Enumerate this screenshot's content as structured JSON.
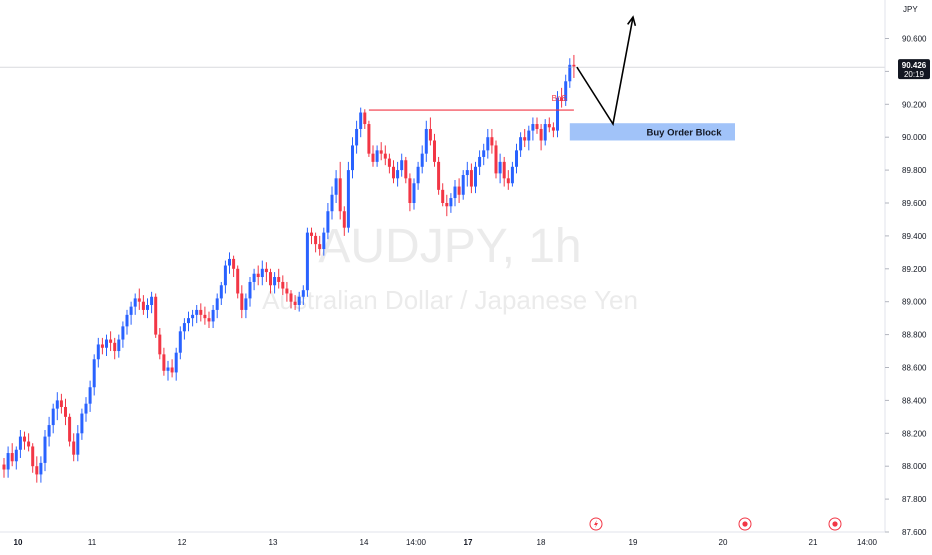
{
  "symbol_watermark": "AUDJPY, 1h",
  "name_watermark": "Australian Dollar / Japanese Yen",
  "currency_label": "JPY",
  "price_axis": {
    "ticks": [
      "90.600",
      "90.400",
      "90.200",
      "90.000",
      "89.800",
      "89.600",
      "89.400",
      "89.200",
      "89.000",
      "88.800",
      "88.600",
      "88.400",
      "88.200",
      "88.000",
      "87.800",
      "87.600"
    ],
    "current_price": "90.426",
    "countdown": "20:19"
  },
  "time_axis": {
    "ticks": [
      {
        "label": "10",
        "bold": true
      },
      {
        "label": "11",
        "bold": false
      },
      {
        "label": "12",
        "bold": false
      },
      {
        "label": "13",
        "bold": false
      },
      {
        "label": "14",
        "bold": false
      },
      {
        "label": "14:00",
        "bold": false
      },
      {
        "label": "17",
        "bold": true
      },
      {
        "label": "18",
        "bold": false
      },
      {
        "label": "19",
        "bold": false
      },
      {
        "label": "20",
        "bold": false
      },
      {
        "label": "21",
        "bold": false
      },
      {
        "label": "14:00",
        "bold": false
      }
    ]
  },
  "annotations": {
    "bos_label": "BoS",
    "order_block_label": "Buy Order Block"
  },
  "colors": {
    "up": "#2962ff",
    "down": "#f23645",
    "bos_line": "#f23645",
    "order_block": "#90b8f8",
    "arrow": "#000000"
  },
  "event_icons": [
    "lightning-event-icon",
    "target-event-icon",
    "target-event-icon"
  ],
  "chart_data": {
    "type": "candlestick",
    "title": "AUDJPY, 1h",
    "ylim": [
      87.6,
      90.7
    ],
    "current_price": 90.426,
    "bos_level": 90.165,
    "order_block": [
      89.98,
      90.085
    ],
    "projection": [
      90.426,
      90.08,
      90.73
    ],
    "ohlc": [
      [
        88.01,
        88.05,
        87.93,
        87.98
      ],
      [
        87.98,
        88.12,
        87.93,
        88.08
      ],
      [
        88.08,
        88.14,
        88.0,
        88.03
      ],
      [
        88.03,
        88.12,
        87.98,
        88.1
      ],
      [
        88.1,
        88.22,
        88.05,
        88.18
      ],
      [
        88.18,
        88.21,
        88.1,
        88.15
      ],
      [
        88.15,
        88.2,
        88.09,
        88.12
      ],
      [
        88.12,
        88.14,
        87.96,
        88.0
      ],
      [
        88.0,
        88.06,
        87.9,
        87.95
      ],
      [
        87.95,
        88.06,
        87.9,
        88.02
      ],
      [
        88.02,
        88.22,
        87.97,
        88.18
      ],
      [
        88.18,
        88.3,
        88.12,
        88.25
      ],
      [
        88.25,
        88.38,
        88.2,
        88.35
      ],
      [
        88.35,
        88.45,
        88.28,
        88.4
      ],
      [
        88.4,
        88.44,
        88.32,
        88.36
      ],
      [
        88.36,
        88.41,
        88.25,
        88.3
      ],
      [
        88.3,
        88.32,
        88.12,
        88.15
      ],
      [
        88.15,
        88.2,
        88.03,
        88.07
      ],
      [
        88.07,
        88.25,
        88.03,
        88.2
      ],
      [
        88.2,
        88.35,
        88.16,
        88.32
      ],
      [
        88.32,
        88.42,
        88.27,
        88.38
      ],
      [
        88.38,
        88.52,
        88.33,
        88.48
      ],
      [
        88.48,
        88.68,
        88.43,
        88.65
      ],
      [
        88.65,
        88.78,
        88.6,
        88.74
      ],
      [
        88.74,
        88.78,
        88.68,
        88.72
      ],
      [
        88.72,
        88.8,
        88.67,
        88.77
      ],
      [
        88.77,
        88.82,
        88.7,
        88.75
      ],
      [
        88.75,
        88.78,
        88.65,
        88.7
      ],
      [
        88.7,
        88.8,
        88.66,
        88.77
      ],
      [
        88.77,
        88.88,
        88.72,
        88.85
      ],
      [
        88.85,
        88.95,
        88.8,
        88.92
      ],
      [
        88.92,
        89.0,
        88.86,
        88.97
      ],
      [
        88.97,
        89.05,
        88.92,
        89.02
      ],
      [
        89.02,
        89.08,
        88.95,
        89.0
      ],
      [
        89.0,
        89.04,
        88.92,
        88.95
      ],
      [
        88.95,
        89.02,
        88.9,
        88.98
      ],
      [
        88.98,
        89.06,
        88.93,
        89.03
      ],
      [
        89.03,
        89.05,
        88.78,
        88.8
      ],
      [
        88.8,
        88.84,
        88.65,
        88.68
      ],
      [
        88.68,
        88.72,
        88.55,
        88.58
      ],
      [
        88.58,
        88.64,
        88.52,
        88.6
      ],
      [
        88.6,
        88.65,
        88.54,
        88.57
      ],
      [
        88.57,
        88.72,
        88.52,
        88.69
      ],
      [
        88.69,
        88.85,
        88.65,
        88.82
      ],
      [
        88.82,
        88.9,
        88.77,
        88.87
      ],
      [
        88.87,
        88.94,
        88.82,
        88.9
      ],
      [
        88.9,
        88.95,
        88.85,
        88.92
      ],
      [
        88.92,
        88.98,
        88.87,
        88.95
      ],
      [
        88.95,
        88.99,
        88.88,
        88.92
      ],
      [
        88.92,
        88.97,
        88.86,
        88.9
      ],
      [
        88.9,
        88.94,
        88.84,
        88.88
      ],
      [
        88.88,
        88.98,
        88.84,
        88.95
      ],
      [
        88.95,
        89.05,
        88.9,
        89.02
      ],
      [
        89.02,
        89.12,
        88.98,
        89.1
      ],
      [
        89.1,
        89.25,
        89.05,
        89.22
      ],
      [
        89.22,
        89.3,
        89.17,
        89.26
      ],
      [
        89.26,
        89.28,
        89.15,
        89.2
      ],
      [
        89.2,
        89.22,
        89.02,
        89.05
      ],
      [
        89.05,
        89.1,
        88.9,
        88.95
      ],
      [
        88.95,
        89.05,
        88.9,
        89.02
      ],
      [
        89.02,
        89.15,
        88.97,
        89.12
      ],
      [
        89.12,
        89.2,
        89.07,
        89.17
      ],
      [
        89.17,
        89.22,
        89.1,
        89.15
      ],
      [
        89.15,
        89.25,
        89.1,
        89.2
      ],
      [
        89.2,
        89.24,
        89.12,
        89.18
      ],
      [
        89.18,
        89.2,
        89.05,
        89.1
      ],
      [
        89.1,
        89.18,
        89.05,
        89.15
      ],
      [
        89.15,
        89.2,
        89.08,
        89.12
      ],
      [
        89.12,
        89.16,
        89.04,
        89.08
      ],
      [
        89.08,
        89.12,
        89.0,
        89.05
      ],
      [
        89.05,
        89.07,
        88.96,
        89.0
      ],
      [
        89.0,
        89.04,
        88.95,
        88.98
      ],
      [
        88.98,
        89.06,
        88.94,
        89.03
      ],
      [
        89.03,
        89.1,
        88.98,
        89.07
      ],
      [
        89.07,
        89.45,
        89.03,
        89.42
      ],
      [
        89.42,
        89.45,
        89.35,
        89.4
      ],
      [
        89.4,
        89.42,
        89.3,
        89.35
      ],
      [
        89.35,
        89.4,
        89.28,
        89.32
      ],
      [
        89.32,
        89.45,
        89.28,
        89.42
      ],
      [
        89.42,
        89.6,
        89.38,
        89.55
      ],
      [
        89.55,
        89.7,
        89.5,
        89.65
      ],
      [
        89.65,
        89.8,
        89.6,
        89.75
      ],
      [
        89.75,
        89.85,
        89.5,
        89.55
      ],
      [
        89.55,
        89.58,
        89.4,
        89.45
      ],
      [
        89.45,
        89.85,
        89.42,
        89.8
      ],
      [
        89.8,
        90.0,
        89.75,
        89.95
      ],
      [
        89.95,
        90.1,
        89.9,
        90.05
      ],
      [
        90.05,
        90.18,
        90.0,
        90.15
      ],
      [
        90.15,
        90.17,
        90.05,
        90.08
      ],
      [
        90.08,
        90.1,
        89.88,
        89.9
      ],
      [
        89.9,
        89.95,
        89.82,
        89.85
      ],
      [
        89.85,
        89.95,
        89.82,
        89.92
      ],
      [
        89.92,
        89.97,
        89.86,
        89.9
      ],
      [
        89.9,
        89.95,
        89.83,
        89.87
      ],
      [
        89.87,
        89.9,
        89.78,
        89.82
      ],
      [
        89.82,
        89.86,
        89.72,
        89.75
      ],
      [
        89.75,
        89.85,
        89.7,
        89.8
      ],
      [
        89.8,
        89.9,
        89.76,
        89.86
      ],
      [
        89.86,
        89.88,
        89.72,
        89.75
      ],
      [
        89.75,
        89.78,
        89.55,
        89.6
      ],
      [
        89.6,
        89.75,
        89.56,
        89.72
      ],
      [
        89.72,
        89.85,
        89.68,
        89.82
      ],
      [
        89.82,
        89.95,
        89.78,
        89.9
      ],
      [
        89.9,
        90.1,
        89.85,
        90.05
      ],
      [
        90.05,
        90.12,
        89.95,
        89.98
      ],
      [
        89.98,
        90.02,
        89.82,
        89.85
      ],
      [
        89.85,
        89.88,
        89.65,
        89.68
      ],
      [
        89.68,
        89.72,
        89.58,
        89.6
      ],
      [
        89.6,
        89.65,
        89.52,
        89.58
      ],
      [
        89.58,
        89.66,
        89.54,
        89.63
      ],
      [
        89.63,
        89.74,
        89.58,
        89.7
      ],
      [
        89.7,
        89.75,
        89.6,
        89.65
      ],
      [
        89.65,
        89.8,
        89.62,
        89.77
      ],
      [
        89.77,
        89.85,
        89.7,
        89.8
      ],
      [
        89.8,
        89.84,
        89.66,
        89.7
      ],
      [
        89.7,
        89.85,
        89.66,
        89.82
      ],
      [
        89.82,
        89.92,
        89.77,
        89.88
      ],
      [
        89.88,
        89.96,
        89.83,
        89.92
      ],
      [
        89.92,
        90.05,
        89.87,
        90.0
      ],
      [
        90.0,
        90.05,
        89.9,
        89.95
      ],
      [
        89.95,
        89.98,
        89.75,
        89.78
      ],
      [
        89.78,
        89.9,
        89.72,
        89.85
      ],
      [
        89.85,
        89.88,
        89.7,
        89.75
      ],
      [
        89.75,
        89.8,
        89.68,
        89.72
      ],
      [
        89.72,
        89.85,
        89.7,
        89.82
      ],
      [
        89.82,
        89.96,
        89.78,
        89.92
      ],
      [
        89.92,
        90.03,
        89.88,
        90.0
      ],
      [
        90.0,
        90.05,
        89.94,
        89.98
      ],
      [
        89.98,
        90.07,
        89.92,
        90.04
      ],
      [
        90.04,
        90.12,
        89.98,
        90.08
      ],
      [
        90.08,
        90.12,
        90.02,
        90.05
      ],
      [
        90.05,
        90.08,
        89.92,
        89.98
      ],
      [
        89.98,
        90.11,
        89.95,
        90.08
      ],
      [
        90.08,
        90.12,
        90.03,
        90.06
      ],
      [
        90.06,
        90.09,
        90.0,
        90.04
      ],
      [
        90.04,
        90.28,
        90.0,
        90.24
      ],
      [
        90.24,
        90.3,
        90.18,
        90.22
      ],
      [
        90.22,
        90.38,
        90.19,
        90.34
      ],
      [
        90.34,
        90.48,
        90.3,
        90.44
      ],
      [
        90.44,
        90.5,
        90.36,
        90.43
      ]
    ]
  }
}
